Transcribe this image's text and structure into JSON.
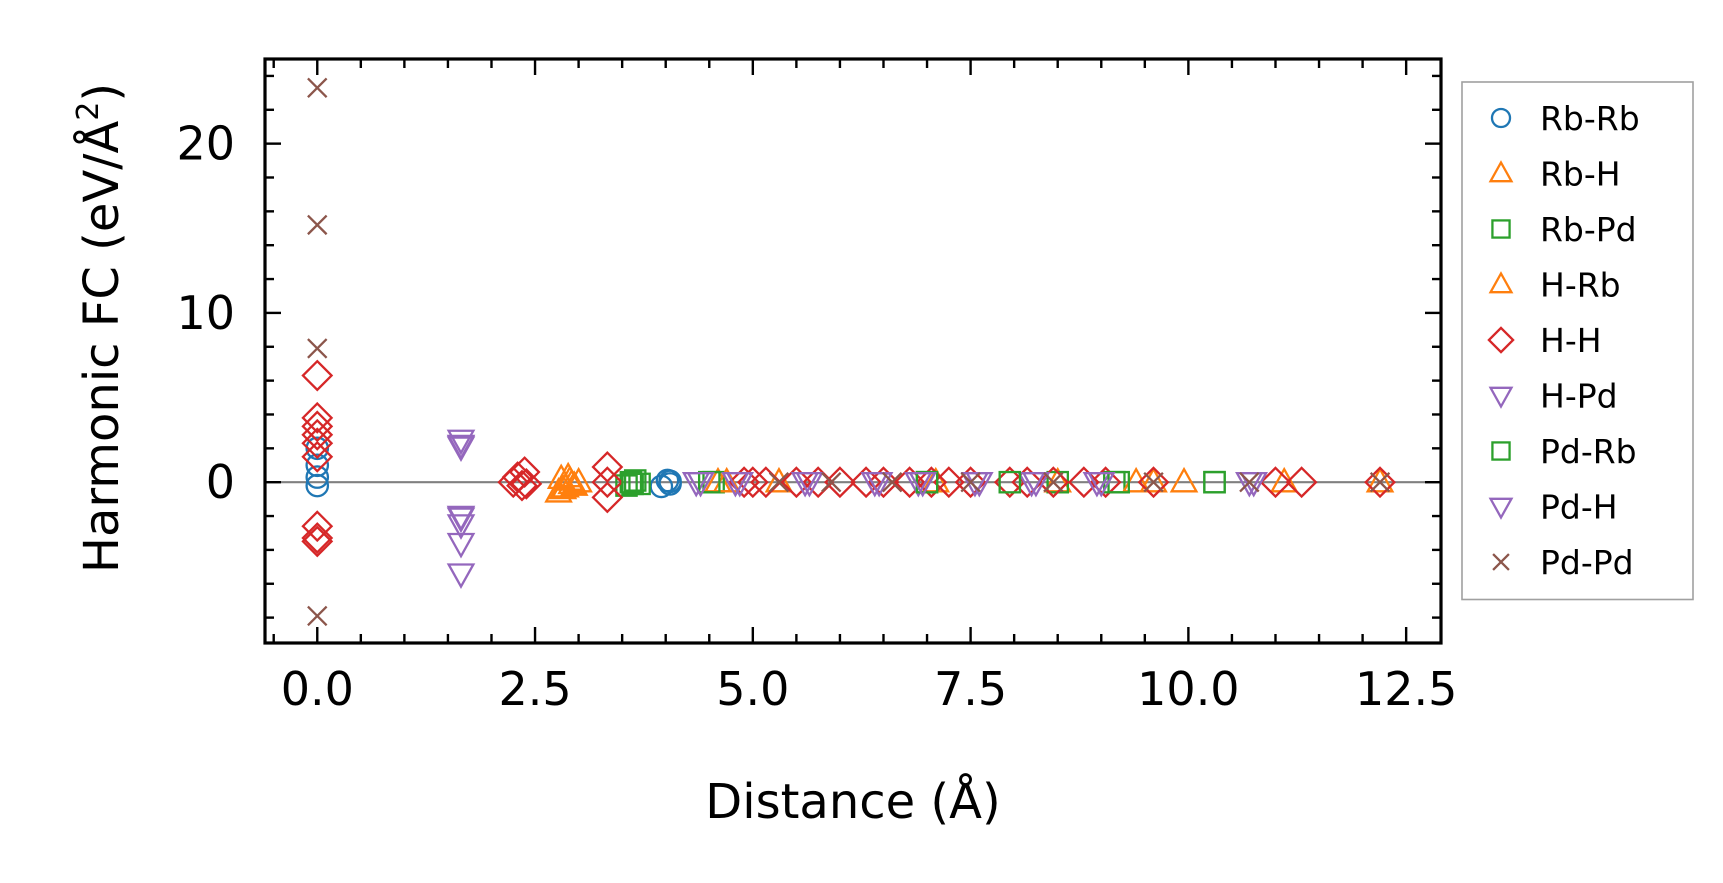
{
  "chart_data": {
    "type": "scatter",
    "title": "",
    "xlabel": "Distance (Å)",
    "ylabel": "Harmonic FC (eV/Å",
    "ylabel_superscript": "2",
    "ylabel_close": ")",
    "xlim": [
      -0.6,
      12.9
    ],
    "ylim": [
      -9.5,
      25.0
    ],
    "xticks": [
      0.0,
      2.5,
      5.0,
      7.5,
      10.0,
      12.5
    ],
    "xtick_labels": [
      "0.0",
      "2.5",
      "5.0",
      "7.5",
      "10.0",
      "12.5"
    ],
    "yticks": [
      0,
      10,
      20
    ],
    "ytick_labels": [
      "0",
      "10",
      "20"
    ],
    "zero_line": true,
    "legend_position": "right-outside-top",
    "series": [
      {
        "name": "Rb-Rb",
        "marker": "circle",
        "color": "#1f77b4",
        "x": [
          0,
          0,
          0,
          0,
          3.95,
          4.02,
          4.05,
          4.05
        ],
        "y": [
          2.0,
          1.0,
          0.3,
          -0.2,
          -0.25,
          0.1,
          -0.1,
          0.05
        ]
      },
      {
        "name": "Rb-H",
        "marker": "triangle-up",
        "color": "#ff7f0e",
        "x": [
          2.77,
          2.8,
          2.85,
          2.9,
          2.95,
          3.0,
          4.6,
          8.5,
          9.6,
          9.95,
          11.1,
          12.2
        ],
        "y": [
          -0.6,
          0.2,
          -0.3,
          0.1,
          -0.2,
          0.0,
          0.0,
          0.0,
          0.0,
          0.0,
          0.0,
          0.0
        ]
      },
      {
        "name": "Rb-Pd",
        "marker": "square",
        "color": "#2ca02c",
        "x": [
          3.55,
          3.6,
          3.65,
          3.7,
          4.55,
          7.0,
          8.5,
          9.15,
          10.3
        ],
        "y": [
          -0.2,
          0.0,
          0.1,
          -0.1,
          0.0,
          0.0,
          0.0,
          0.0,
          0.0
        ]
      },
      {
        "name": "H-Rb",
        "marker": "triangle-up",
        "color": "#ff7f0e",
        "x": [
          2.82,
          2.88,
          2.92,
          4.7,
          5.3,
          7.1,
          9.4
        ],
        "y": [
          -0.4,
          0.3,
          -0.1,
          0.0,
          0.0,
          0.0,
          0.0
        ]
      },
      {
        "name": "H-H",
        "marker": "diamond",
        "color": "#d62728",
        "x": [
          0,
          0,
          0,
          0,
          0,
          0,
          0,
          0,
          0,
          2.25,
          2.3,
          2.35,
          2.38,
          2.4,
          3.33,
          3.33,
          3.33,
          4.9,
          5.0,
          5.15,
          5.5,
          5.75,
          6.0,
          6.3,
          6.5,
          6.8,
          7.05,
          7.25,
          7.5,
          7.95,
          8.15,
          8.45,
          8.8,
          9.05,
          9.6,
          11.0,
          11.3,
          12.2
        ],
        "y": [
          6.3,
          3.8,
          3.3,
          2.8,
          2.3,
          1.5,
          -2.6,
          -3.3,
          -3.5,
          0.0,
          0.3,
          -0.2,
          0.6,
          -0.1,
          0.9,
          0.0,
          -0.9,
          0.0,
          0.0,
          0.0,
          0.0,
          0.0,
          0.0,
          0.0,
          0.0,
          0.0,
          0.0,
          0.0,
          0.0,
          0.0,
          0.0,
          0.0,
          0.0,
          0.0,
          0.0,
          0.0,
          0.0,
          0.0
        ]
      },
      {
        "name": "H-Pd",
        "marker": "triangle-down",
        "color": "#9467bd",
        "x": [
          1.65,
          1.65,
          1.65,
          1.65,
          1.65,
          1.65,
          4.35,
          4.85,
          5.6,
          6.4,
          6.9,
          7.6,
          8.2,
          8.95,
          10.7
        ],
        "y": [
          2.5,
          2.1,
          -2.1,
          -2.5,
          -3.6,
          -5.4,
          0.0,
          0.0,
          0.0,
          0.0,
          0.0,
          0.0,
          0.0,
          0.0,
          0.0
        ]
      },
      {
        "name": "Pd-Rb",
        "marker": "square",
        "color": "#2ca02c",
        "x": [
          3.62,
          4.5,
          7.0,
          7.95,
          9.2,
          10.3
        ],
        "y": [
          -0.1,
          0.0,
          0.0,
          0.0,
          0.0,
          0.0
        ]
      },
      {
        "name": "Pd-H",
        "marker": "triangle-down",
        "color": "#9467bd",
        "x": [
          1.65,
          1.65,
          4.4,
          4.8,
          5.65,
          6.45,
          6.95,
          7.55,
          8.25,
          9.0,
          10.75
        ],
        "y": [
          2.2,
          -2.0,
          0.0,
          0.0,
          0.0,
          0.0,
          0.0,
          0.0,
          0.0,
          0.0,
          0.0
        ]
      },
      {
        "name": "Pd-Pd",
        "marker": "x",
        "color": "#8c564b",
        "x": [
          0,
          0,
          0,
          0,
          5.3,
          5.9,
          6.6,
          7.5,
          8.45,
          9.6,
          10.7,
          12.2
        ],
        "y": [
          23.3,
          15.2,
          7.9,
          -7.9,
          0.0,
          0.0,
          0.0,
          0.0,
          0.0,
          0.0,
          0.0,
          0.0
        ]
      }
    ]
  }
}
